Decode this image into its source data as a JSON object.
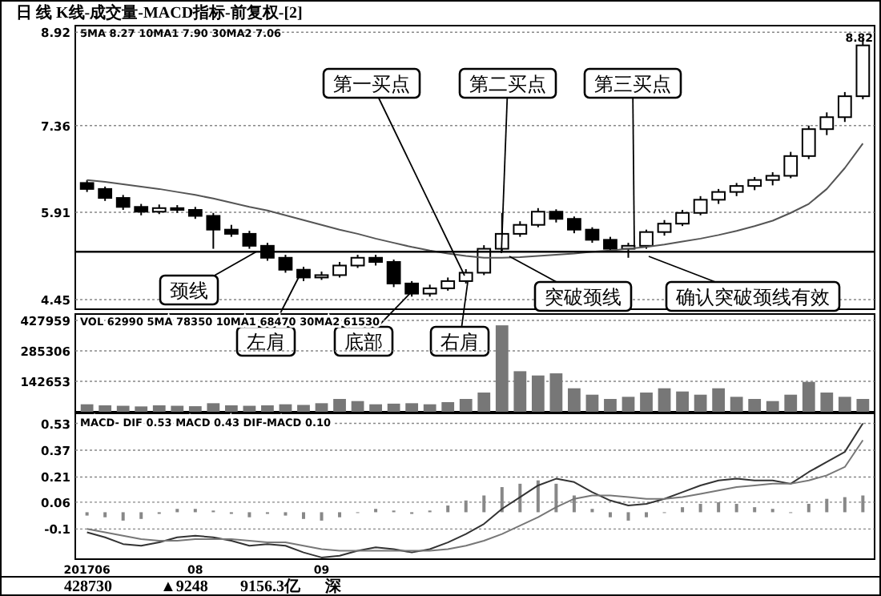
{
  "chart_data": [
    {
      "type": "candlestick",
      "title": "日 线 K线-成交量-MACD指标-前复权-[2]",
      "categories": [
        null,
        null,
        null,
        null,
        null,
        null,
        null,
        null,
        null,
        null,
        null,
        null,
        null,
        null,
        null,
        null,
        null,
        null,
        null,
        null,
        null,
        null,
        null,
        null,
        null,
        null,
        null,
        null,
        null,
        null,
        null,
        null,
        null,
        null,
        null,
        null,
        null,
        null,
        null,
        null,
        null,
        null,
        null,
        null
      ],
      "ohlc": [
        [
          6.4,
          6.45,
          6.25,
          6.3
        ],
        [
          6.3,
          6.34,
          6.1,
          6.15
        ],
        [
          6.15,
          6.2,
          5.95,
          6.0
        ],
        [
          6.0,
          6.05,
          5.86,
          5.92
        ],
        [
          5.92,
          6.04,
          5.88,
          5.98
        ],
        [
          5.98,
          6.03,
          5.9,
          5.95
        ],
        [
          5.95,
          6.0,
          5.8,
          5.85
        ],
        [
          5.85,
          5.9,
          5.3,
          5.62
        ],
        [
          5.62,
          5.7,
          5.5,
          5.55
        ],
        [
          5.55,
          5.6,
          5.3,
          5.35
        ],
        [
          5.35,
          5.4,
          5.1,
          5.15
        ],
        [
          5.15,
          5.2,
          4.9,
          4.95
        ],
        [
          4.95,
          5.0,
          4.76,
          4.82
        ],
        [
          4.82,
          4.92,
          4.78,
          4.86
        ],
        [
          4.86,
          5.08,
          4.82,
          5.02
        ],
        [
          5.02,
          5.2,
          4.98,
          5.15
        ],
        [
          5.15,
          5.2,
          5.02,
          5.08
        ],
        [
          5.08,
          5.12,
          4.66,
          4.72
        ],
        [
          4.72,
          4.76,
          4.5,
          4.55
        ],
        [
          4.55,
          4.7,
          4.5,
          4.64
        ],
        [
          4.64,
          4.82,
          4.6,
          4.76
        ],
        [
          4.76,
          4.96,
          4.72,
          4.9
        ],
        [
          4.9,
          5.36,
          4.86,
          5.3
        ],
        [
          5.3,
          5.9,
          5.25,
          5.55
        ],
        [
          5.55,
          5.76,
          5.5,
          5.7
        ],
        [
          5.7,
          5.98,
          5.66,
          5.92
        ],
        [
          5.92,
          5.96,
          5.74,
          5.8
        ],
        [
          5.8,
          5.84,
          5.56,
          5.62
        ],
        [
          5.62,
          5.66,
          5.4,
          5.45
        ],
        [
          5.45,
          5.5,
          5.25,
          5.3
        ],
        [
          5.3,
          5.4,
          5.15,
          5.35
        ],
        [
          5.35,
          5.62,
          5.3,
          5.58
        ],
        [
          5.58,
          5.78,
          5.52,
          5.72
        ],
        [
          5.72,
          5.95,
          5.68,
          5.9
        ],
        [
          5.9,
          6.18,
          5.86,
          6.12
        ],
        [
          6.12,
          6.3,
          6.05,
          6.25
        ],
        [
          6.25,
          6.4,
          6.18,
          6.35
        ],
        [
          6.35,
          6.5,
          6.28,
          6.45
        ],
        [
          6.45,
          6.58,
          6.36,
          6.52
        ],
        [
          6.52,
          6.92,
          6.48,
          6.85
        ],
        [
          6.85,
          7.36,
          6.8,
          7.3
        ],
        [
          7.3,
          7.58,
          7.2,
          7.5
        ],
        [
          7.5,
          7.92,
          7.42,
          7.85
        ],
        [
          7.85,
          8.82,
          7.8,
          8.7
        ]
      ],
      "color": "#000000",
      "series": [
        {
          "type": "line",
          "color": "#555555",
          "values": [
            6.45,
            6.42,
            6.38,
            6.34,
            6.3,
            6.25,
            6.2,
            6.14,
            6.07,
            6.0,
            5.94,
            5.86,
            5.78,
            5.7,
            5.62,
            5.55,
            5.47,
            5.4,
            5.33,
            5.27,
            5.22,
            5.18,
            5.15,
            5.15,
            5.16,
            5.18,
            5.2,
            5.22,
            5.25,
            5.27,
            5.3,
            5.33,
            5.37,
            5.42,
            5.47,
            5.53,
            5.6,
            5.68,
            5.77,
            5.9,
            6.05,
            6.3,
            6.65,
            7.06
          ]
        }
      ],
      "ylim": [
        4.29,
        9.03
      ],
      "yticks": [
        4.45,
        5.91,
        7.36,
        8.92
      ],
      "grid": "y",
      "tick_labels": "y",
      "ref_lines": [
        {
          "axis": "y",
          "value": 5.25,
          "label": "颈线",
          "color": "#000000"
        }
      ],
      "annotations": [
        "5MA 8.27 10MA1 7.90 30MA2 7.06",
        "左肩",
        "底部",
        "右肩",
        "第一买点",
        "第二买点",
        "第三买点",
        "突破颈线",
        "确认突破颈线有效",
        "8.82"
      ]
    },
    {
      "type": "bar",
      "categories": [
        null,
        null,
        null,
        null,
        null,
        null,
        null,
        null,
        null,
        null,
        null,
        null,
        null,
        null,
        null,
        null,
        null,
        null,
        null,
        null,
        null,
        null,
        null,
        null,
        null,
        null,
        null,
        null,
        null,
        null,
        null,
        null,
        null,
        null,
        null,
        null,
        null,
        null,
        null,
        null,
        null,
        null,
        null,
        null
      ],
      "values": [
        35000,
        30000,
        28000,
        25000,
        30000,
        28000,
        26000,
        40000,
        30000,
        28000,
        30000,
        35000,
        32000,
        40000,
        60000,
        50000,
        35000,
        38000,
        40000,
        35000,
        45000,
        60000,
        90000,
        405000,
        190000,
        170000,
        180000,
        110000,
        80000,
        60000,
        70000,
        90000,
        110000,
        95000,
        80000,
        110000,
        70000,
        60000,
        50000,
        80000,
        140000,
        90000,
        70000,
        60000
      ],
      "color": "#777777",
      "ylim": [
        0,
        458000
      ],
      "yticks": [
        142653,
        285306,
        427959
      ],
      "grid": "y",
      "tick_labels": "y",
      "annotations": [
        "VOL 62990 5MA 78350 10MA1 68470 30MA2 61530"
      ]
    },
    {
      "type": "line",
      "categories": [
        "201706",
        null,
        null,
        null,
        null,
        null,
        "08",
        null,
        null,
        null,
        null,
        null,
        null,
        "09",
        null,
        null,
        null,
        null,
        null,
        null,
        null,
        null,
        null,
        null,
        null,
        null,
        null,
        null,
        null,
        null,
        null,
        null,
        null,
        null,
        null,
        null,
        null,
        null,
        null,
        null,
        null,
        null,
        null,
        null
      ],
      "series": [
        {
          "type": "bar",
          "color": "#888888",
          "values": [
            -0.02,
            -0.03,
            -0.05,
            -0.04,
            -0.01,
            0.02,
            0.02,
            0.01,
            -0.01,
            -0.03,
            -0.01,
            -0.02,
            -0.04,
            -0.05,
            -0.03,
            0,
            0.02,
            0.01,
            -0.01,
            0.01,
            0.04,
            0.07,
            0.1,
            0.15,
            0.17,
            0.19,
            0.17,
            0.1,
            0.02,
            -0.03,
            -0.05,
            -0.03,
            0,
            0.03,
            0.05,
            0.06,
            0.05,
            0.03,
            0.02,
            0,
            0.05,
            0.08,
            0.09,
            0.1
          ]
        },
        {
          "type": "line",
          "color": "#333333",
          "values": [
            -0.12,
            -0.15,
            -0.19,
            -0.2,
            -0.18,
            -0.15,
            -0.14,
            -0.15,
            -0.17,
            -0.2,
            -0.19,
            -0.2,
            -0.24,
            -0.27,
            -0.26,
            -0.23,
            -0.21,
            -0.22,
            -0.24,
            -0.22,
            -0.18,
            -0.13,
            -0.07,
            0.02,
            0.09,
            0.16,
            0.2,
            0.18,
            0.12,
            0.07,
            0.04,
            0.05,
            0.08,
            0.12,
            0.16,
            0.19,
            0.2,
            0.19,
            0.19,
            0.17,
            0.24,
            0.3,
            0.36,
            0.53
          ]
        },
        {
          "type": "line",
          "color": "#777777",
          "values": [
            -0.1,
            -0.12,
            -0.14,
            -0.16,
            -0.17,
            -0.17,
            -0.16,
            -0.16,
            -0.16,
            -0.17,
            -0.18,
            -0.18,
            -0.2,
            -0.22,
            -0.23,
            -0.23,
            -0.23,
            -0.23,
            -0.23,
            -0.23,
            -0.22,
            -0.2,
            -0.17,
            -0.13,
            -0.08,
            -0.03,
            0.03,
            0.08,
            0.1,
            0.1,
            0.09,
            0.08,
            0.08,
            0.09,
            0.11,
            0.13,
            0.15,
            0.16,
            0.17,
            0.17,
            0.19,
            0.22,
            0.27,
            0.43
          ]
        }
      ],
      "ylim": [
        -0.28,
        0.59
      ],
      "yticks": [
        -0.1,
        0.06,
        0.21,
        0.37,
        0.53
      ],
      "grid": "y",
      "annotations": [
        "MACD- DIF 0.53 MACD 0.43 DIF-MACD 0.10",
        "428730",
        "▲9248",
        "9156.3亿",
        "深"
      ]
    }
  ]
}
